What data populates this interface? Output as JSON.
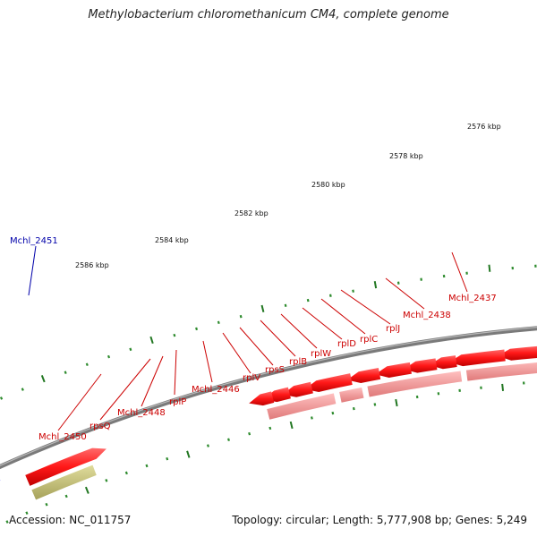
{
  "title": "Methylobacterium chloromethanicum CM4, complete genome",
  "footer": {
    "accession": "Accession: NC_011757",
    "summary": "Topology: circular; Length: 5,777,908 bp; Genes: 5,249"
  },
  "colors": {
    "backbone": "#7a7a7a",
    "gene_forward": "#ff2020",
    "gene_reverse": "#ff9090",
    "highlight_blue": "#0000e0",
    "highlight_orange": "#ff9a00",
    "label_red": "#cc0000",
    "label_blue": "#0000aa",
    "tick_minor": "#2e8b2e",
    "tick_major": "#227722"
  },
  "scale_ticks": [
    "2576 kbp",
    "2578 kbp",
    "2580 kbp",
    "2582 kbp",
    "2584 kbp",
    "2586 kbp"
  ],
  "gene_labels": [
    "Mchl_2451",
    "Mchl_2437",
    "Mchl_2438",
    "rplJ",
    "rplC",
    "rplD",
    "rplW",
    "rplB",
    "rpsS",
    "rplV",
    "Mchl_2446",
    "rplP",
    "Mchl_2448",
    "rpsQ",
    "Mchl_2450"
  ]
}
